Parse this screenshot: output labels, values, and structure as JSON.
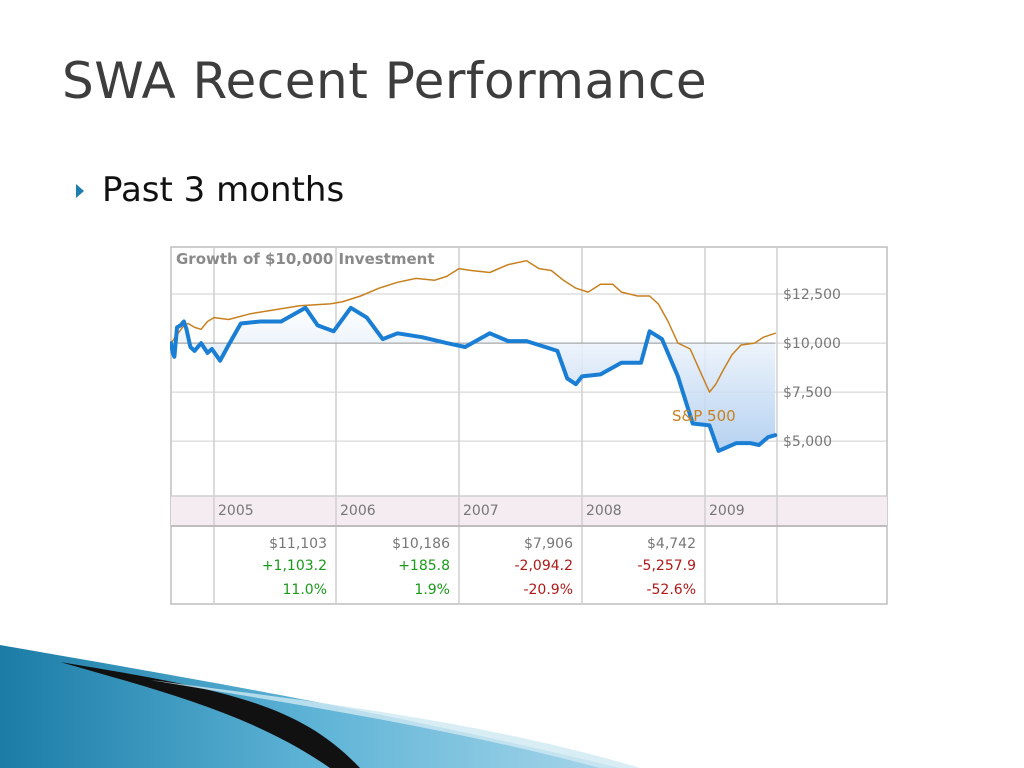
{
  "slide": {
    "title": "SWA Recent Performance",
    "bullet": "Past 3 months"
  },
  "chart_data": {
    "type": "line",
    "title": "Growth of $10,000 Investment",
    "x_labels": [
      "2005",
      "2006",
      "2007",
      "2008",
      "2009"
    ],
    "y_ticks": [
      "$12,500",
      "$10,000",
      "$7,500",
      "$5,000"
    ],
    "ylim": [
      2200,
      14900
    ],
    "baseline": 10000,
    "grid": true,
    "series": [
      {
        "name": "",
        "color": "#1a7fd4",
        "width": 4,
        "fill_to_baseline": true,
        "points": [
          [
            2004.0,
            10000
          ],
          [
            2004.04,
            9500
          ],
          [
            2004.08,
            9300
          ],
          [
            2004.14,
            10800
          ],
          [
            2004.22,
            10900
          ],
          [
            2004.3,
            11100
          ],
          [
            2004.36,
            10700
          ],
          [
            2004.45,
            9800
          ],
          [
            2004.55,
            9600
          ],
          [
            2004.7,
            10000
          ],
          [
            2004.85,
            9500
          ],
          [
            2004.95,
            9700
          ],
          [
            2005.05,
            9100
          ],
          [
            2005.12,
            9900
          ],
          [
            2005.22,
            11000
          ],
          [
            2005.38,
            11100
          ],
          [
            2005.55,
            11100
          ],
          [
            2005.75,
            11800
          ],
          [
            2005.85,
            10900
          ],
          [
            2005.98,
            10600
          ],
          [
            2006.12,
            11800
          ],
          [
            2006.25,
            11300
          ],
          [
            2006.38,
            10200
          ],
          [
            2006.5,
            10500
          ],
          [
            2006.7,
            10300
          ],
          [
            2006.9,
            10000
          ],
          [
            2007.05,
            9800
          ],
          [
            2007.25,
            10500
          ],
          [
            2007.4,
            10100
          ],
          [
            2007.55,
            10100
          ],
          [
            2007.8,
            9600
          ],
          [
            2007.88,
            8200
          ],
          [
            2007.95,
            7900
          ],
          [
            2008.0,
            8300
          ],
          [
            2008.15,
            8400
          ],
          [
            2008.32,
            9000
          ],
          [
            2008.48,
            9000
          ],
          [
            2008.55,
            10600
          ],
          [
            2008.65,
            10200
          ],
          [
            2008.78,
            8300
          ],
          [
            2008.9,
            5900
          ],
          [
            2009.05,
            5800
          ],
          [
            2009.15,
            4500
          ],
          [
            2009.25,
            4700
          ],
          [
            2009.35,
            4900
          ],
          [
            2009.5,
            4900
          ],
          [
            2009.6,
            4800
          ],
          [
            2009.7,
            5200
          ],
          [
            2009.78,
            5300
          ]
        ]
      },
      {
        "name": "S&P 500",
        "color": "#c8801e",
        "width": 1.5,
        "fill_to_baseline": false,
        "points": [
          [
            2004.0,
            10000
          ],
          [
            2004.1,
            10300
          ],
          [
            2004.2,
            10600
          ],
          [
            2004.3,
            10900
          ],
          [
            2004.4,
            11000
          ],
          [
            2004.55,
            10800
          ],
          [
            2004.7,
            10700
          ],
          [
            2004.85,
            11100
          ],
          [
            2005.0,
            11300
          ],
          [
            2005.12,
            11200
          ],
          [
            2005.3,
            11500
          ],
          [
            2005.5,
            11700
          ],
          [
            2005.7,
            11900
          ],
          [
            2005.95,
            12000
          ],
          [
            2006.05,
            12100
          ],
          [
            2006.2,
            12400
          ],
          [
            2006.35,
            12800
          ],
          [
            2006.5,
            13100
          ],
          [
            2006.65,
            13300
          ],
          [
            2006.8,
            13200
          ],
          [
            2006.9,
            13400
          ],
          [
            2007.0,
            13800
          ],
          [
            2007.1,
            13700
          ],
          [
            2007.25,
            13600
          ],
          [
            2007.4,
            14000
          ],
          [
            2007.55,
            14200
          ],
          [
            2007.65,
            13800
          ],
          [
            2007.75,
            13700
          ],
          [
            2007.85,
            13200
          ],
          [
            2007.95,
            12800
          ],
          [
            2008.05,
            12600
          ],
          [
            2008.15,
            13000
          ],
          [
            2008.25,
            13000
          ],
          [
            2008.32,
            12600
          ],
          [
            2008.45,
            12400
          ],
          [
            2008.55,
            12400
          ],
          [
            2008.62,
            12000
          ],
          [
            2008.7,
            11100
          ],
          [
            2008.78,
            10000
          ],
          [
            2008.88,
            9700
          ],
          [
            2008.95,
            8700
          ],
          [
            2009.05,
            7500
          ],
          [
            2009.12,
            7900
          ],
          [
            2009.2,
            8600
          ],
          [
            2009.3,
            9400
          ],
          [
            2009.4,
            9900
          ],
          [
            2009.55,
            10000
          ],
          [
            2009.65,
            10300
          ],
          [
            2009.78,
            10500
          ]
        ]
      }
    ],
    "summary_table": [
      {
        "year": "2005",
        "value": "$11,103",
        "change": "+1,103.2",
        "percent": "11.0%",
        "sign": "positive"
      },
      {
        "year": "2006",
        "value": "$10,186",
        "change": "+185.8",
        "percent": "1.9%",
        "sign": "positive"
      },
      {
        "year": "2007",
        "value": "$7,906",
        "change": "-2,094.2",
        "percent": "-20.9%",
        "sign": "negative"
      },
      {
        "year": "2008",
        "value": "$4,742",
        "change": "-5,257.9",
        "percent": "-52.6%",
        "sign": "negative"
      }
    ],
    "colors": {
      "positive": "#1a9a1a",
      "negative": "#b01818",
      "grid": "#cfcfcf",
      "axis_text": "#777777",
      "fill_top": "#ffffff",
      "fill_bottom": "#a9c9ee",
      "year_band": "#f4ecf0"
    }
  }
}
